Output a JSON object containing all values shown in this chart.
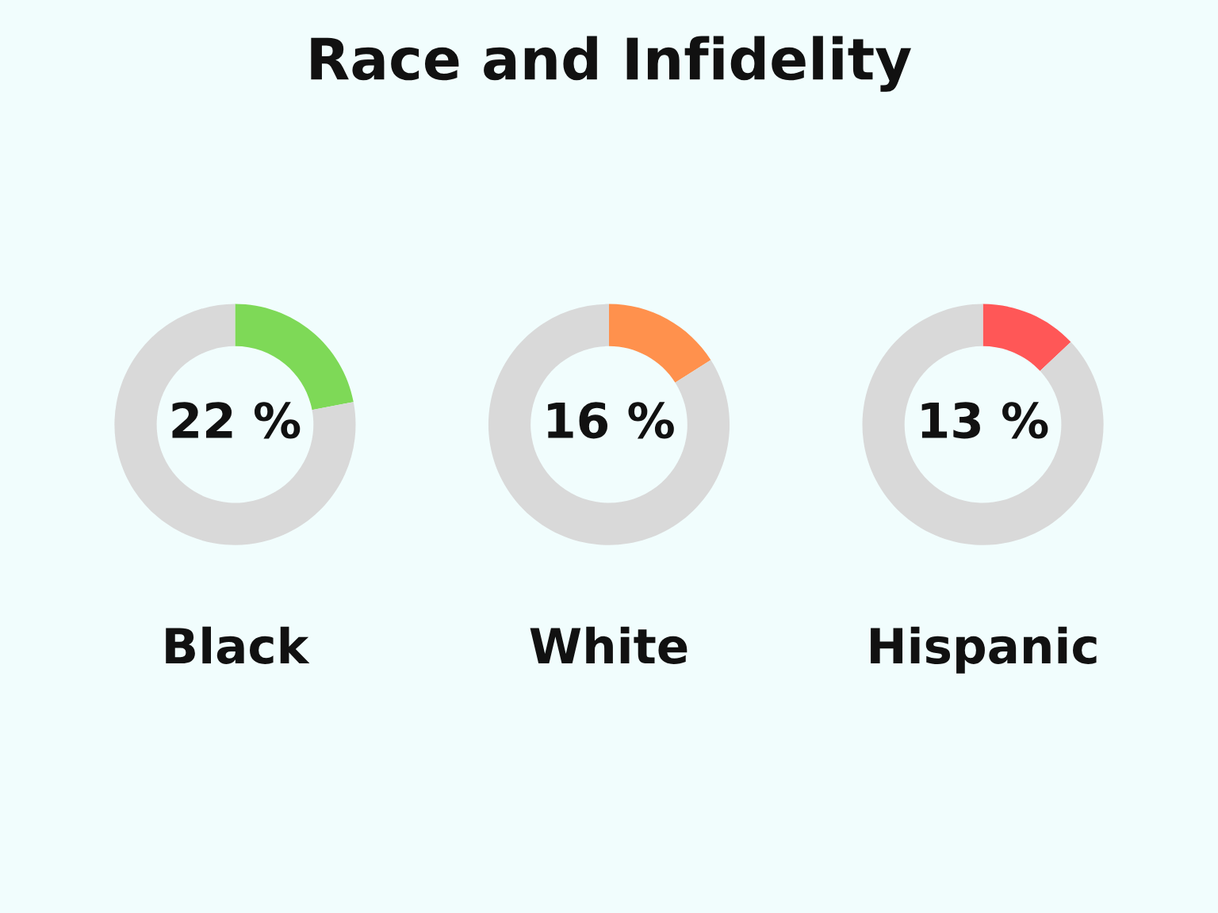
{
  "chart_data": [
    {
      "type": "other",
      "title": "Race and Infidelity"
    },
    {
      "type": "donut",
      "xlabel": "Black",
      "categories": [
        null,
        null
      ],
      "values": [
        22,
        78
      ],
      "colors": [
        "#7ed957",
        "#d9d9d9"
      ],
      "value_labels": [
        "22 %",
        null
      ]
    },
    {
      "type": "donut",
      "xlabel": "White",
      "categories": [
        null,
        null
      ],
      "values": [
        16,
        84
      ],
      "colors": [
        "#ff914d",
        "#d9d9d9"
      ],
      "value_labels": [
        "16 %",
        null
      ]
    },
    {
      "type": "donut",
      "xlabel": "Hispanic",
      "categories": [
        null,
        null
      ],
      "values": [
        13,
        87
      ],
      "colors": [
        "#ff5757",
        "#d9d9d9"
      ],
      "value_labels": [
        "13 %",
        null
      ]
    }
  ]
}
